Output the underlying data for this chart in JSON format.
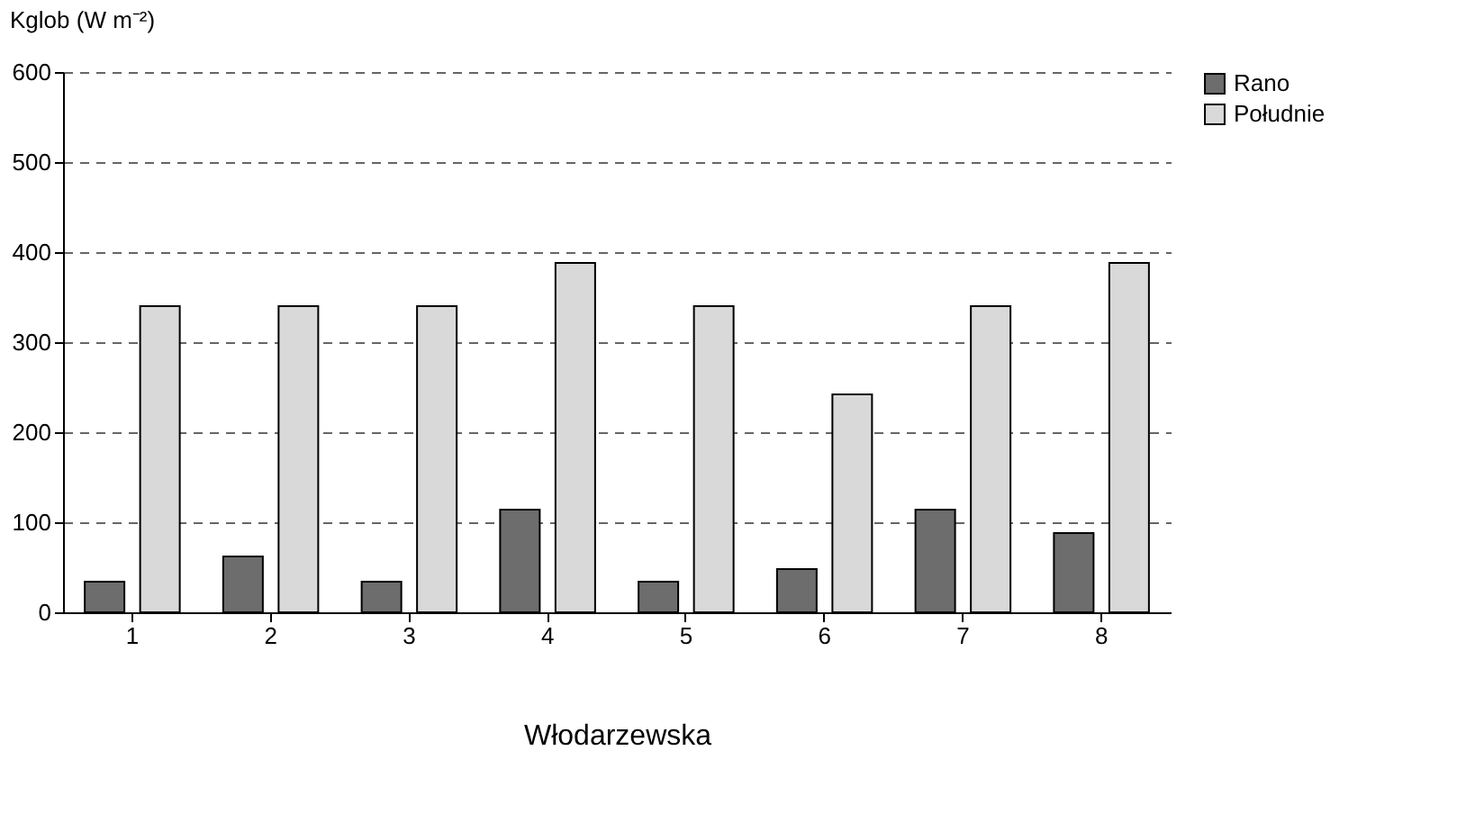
{
  "chart_data": {
    "type": "bar",
    "ylabel": "Kglob (W m⁻²)",
    "xlabel": "Włodarzewska",
    "categories": [
      "1",
      "2",
      "3",
      "4",
      "5",
      "6",
      "7",
      "8"
    ],
    "series": [
      {
        "name": "Rano",
        "color": "#6d6d6d",
        "values": [
          34,
          62,
          34,
          114,
          34,
          48,
          114,
          88
        ]
      },
      {
        "name": "Południe",
        "color": "#d9d9d9",
        "values": [
          340,
          340,
          340,
          388,
          340,
          242,
          340,
          388
        ]
      }
    ],
    "ylim": [
      0,
      600
    ],
    "yticks": [
      0,
      100,
      200,
      300,
      400,
      500,
      600
    ],
    "grid": "y",
    "legend": "right"
  }
}
